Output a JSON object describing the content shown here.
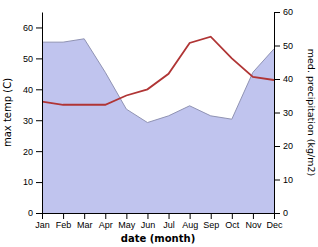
{
  "chart_data": {
    "type": "line",
    "categories": [
      "Jan",
      "Feb",
      "Mar",
      "Apr",
      "May",
      "Jun",
      "Jul",
      "Aug",
      "Sep",
      "Oct",
      "Nov",
      "Dec"
    ],
    "xlabel": "date (month)",
    "ylabel": "max temp (C)",
    "y2label": "med. precipitation (kg/m2)",
    "ylim": [
      0,
      65
    ],
    "yticks": [
      0,
      10,
      20,
      30,
      40,
      50,
      60
    ],
    "y2lim": [
      0,
      60
    ],
    "y2ticks": [
      0,
      10,
      20,
      30,
      40,
      50,
      60
    ],
    "grid": false,
    "series": [
      {
        "type": "area",
        "axis": "y2",
        "color": "#c0c4ee",
        "values": [
          51,
          51,
          52,
          42,
          31,
          27,
          29,
          32,
          29,
          28,
          42,
          49
        ]
      },
      {
        "type": "line",
        "color": "#b03535",
        "values": [
          36,
          35,
          35,
          35,
          38,
          40,
          45,
          55,
          57,
          50,
          44,
          43
        ]
      }
    ]
  }
}
